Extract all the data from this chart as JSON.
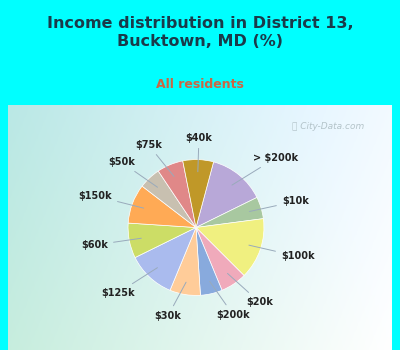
{
  "title_line1": "Income distribution in District 13,",
  "title_line2": "Bucktown, MD (%)",
  "subtitle": "All residents",
  "title_color": "#1a3a4a",
  "subtitle_color": "#cc6644",
  "bg_cyan": "#00ffff",
  "bg_chart_left": "#e8f5ee",
  "bg_chart_right": "#d0ecf0",
  "watermark": "City-Data.com",
  "segments": [
    {
      "label": "> $200k",
      "value": 13,
      "color": "#b8a8d8"
    },
    {
      "label": "$10k",
      "value": 5,
      "color": "#a8c8a0"
    },
    {
      "label": "$100k",
      "value": 14,
      "color": "#f0f080"
    },
    {
      "label": "$20k",
      "value": 6,
      "color": "#f0aabb"
    },
    {
      "label": "$200k",
      "value": 5,
      "color": "#88aadd"
    },
    {
      "label": "$30k",
      "value": 7,
      "color": "#ffcc99"
    },
    {
      "label": "$125k",
      "value": 11,
      "color": "#aabbee"
    },
    {
      "label": "$60k",
      "value": 8,
      "color": "#ccdd66"
    },
    {
      "label": "$150k",
      "value": 9,
      "color": "#ffaa55"
    },
    {
      "label": "$50k",
      "value": 5,
      "color": "#c8c0b0"
    },
    {
      "label": "$75k",
      "value": 6,
      "color": "#e08888"
    },
    {
      "label": "$40k",
      "value": 7,
      "color": "#c09828"
    }
  ],
  "startangle": 75,
  "figsize": [
    4.0,
    3.5
  ],
  "dpi": 100
}
